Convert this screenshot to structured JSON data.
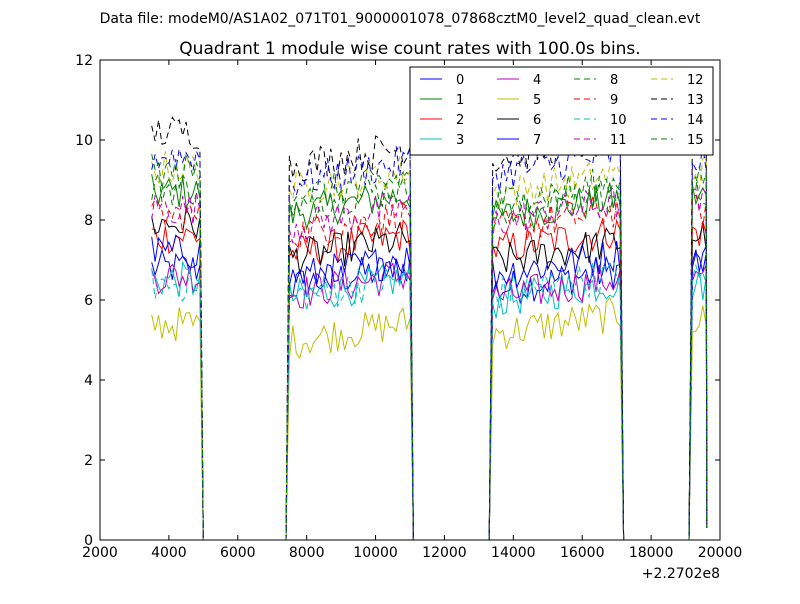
{
  "chart_data": {
    "type": "line",
    "suptitle": "Data file: modeM0/AS1A02_071T01_9000001078_07868cztM0_level2_quad_clean.evt",
    "title": "Quadrant 1 module wise count rates with 100.0s bins.",
    "xlabel": "",
    "ylabel": "",
    "xlim": [
      2000,
      20000
    ],
    "ylim": [
      0,
      12
    ],
    "x_offset_label": "+2.2702e8",
    "xticks": [
      2000,
      4000,
      6000,
      8000,
      10000,
      12000,
      14000,
      16000,
      18000,
      20000
    ],
    "xtick_labels": [
      "2000",
      "4000",
      "6000",
      "8000",
      "10000",
      "12000",
      "14000",
      "16000",
      "18000",
      "20000"
    ],
    "yticks": [
      0,
      2,
      4,
      6,
      8,
      10,
      12
    ],
    "ytick_labels": [
      "0",
      "2",
      "4",
      "6",
      "8",
      "10",
      "12"
    ],
    "grid": false,
    "legend_position": "top-right",
    "segments": [
      [
        3500,
        4900
      ],
      [
        7500,
        11000
      ],
      [
        13400,
        17100
      ],
      [
        19200,
        19600
      ]
    ],
    "series": [
      {
        "name": "0",
        "color": "#0000ff",
        "dash": "solid",
        "levels": [
          6.8,
          6.6,
          6.5,
          6.9
        ]
      },
      {
        "name": "1",
        "color": "#008000",
        "dash": "solid",
        "levels": [
          8.7,
          8.4,
          8.3,
          8.6
        ]
      },
      {
        "name": "2",
        "color": "#ff0000",
        "dash": "solid",
        "levels": [
          7.6,
          7.4,
          7.5,
          7.7
        ]
      },
      {
        "name": "3",
        "color": "#00bfbf",
        "dash": "solid",
        "levels": [
          6.5,
          6.3,
          6.2,
          6.4
        ]
      },
      {
        "name": "4",
        "color": "#bf00bf",
        "dash": "solid",
        "levels": [
          6.6,
          6.4,
          6.3,
          6.5
        ]
      },
      {
        "name": "5",
        "color": "#bfbf00",
        "dash": "solid",
        "levels": [
          5.4,
          5.2,
          5.4,
          5.5
        ]
      },
      {
        "name": "6",
        "color": "#000000",
        "dash": "solid",
        "levels": [
          7.9,
          7.3,
          7.2,
          7.6
        ]
      },
      {
        "name": "7",
        "color": "#0000ff",
        "dash": "solid",
        "levels": [
          7.2,
          6.8,
          6.9,
          7.1
        ]
      },
      {
        "name": "8",
        "color": "#008000",
        "dash": "dashed",
        "levels": [
          8.8,
          8.6,
          8.4,
          8.7
        ]
      },
      {
        "name": "9",
        "color": "#ff0000",
        "dash": "dashed",
        "levels": [
          8.1,
          7.9,
          8.0,
          8.2
        ]
      },
      {
        "name": "10",
        "color": "#00bfbf",
        "dash": "dashed",
        "levels": [
          6.4,
          6.3,
          6.4,
          6.5
        ]
      },
      {
        "name": "11",
        "color": "#bf00bf",
        "dash": "dashed",
        "levels": [
          8.3,
          8.1,
          8.2,
          8.4
        ]
      },
      {
        "name": "12",
        "color": "#bfbf00",
        "dash": "dashed",
        "levels": [
          9.3,
          9.0,
          8.9,
          9.2
        ]
      },
      {
        "name": "13",
        "color": "#000000",
        "dash": "dashed",
        "levels": [
          10.2,
          9.6,
          9.8,
          10.0
        ]
      },
      {
        "name": "14",
        "color": "#0000ff",
        "dash": "dashed",
        "levels": [
          9.6,
          9.2,
          9.4,
          9.5
        ]
      },
      {
        "name": "15",
        "color": "#008000",
        "dash": "dashed",
        "levels": [
          9.2,
          8.8,
          8.7,
          9.1
        ]
      }
    ]
  }
}
